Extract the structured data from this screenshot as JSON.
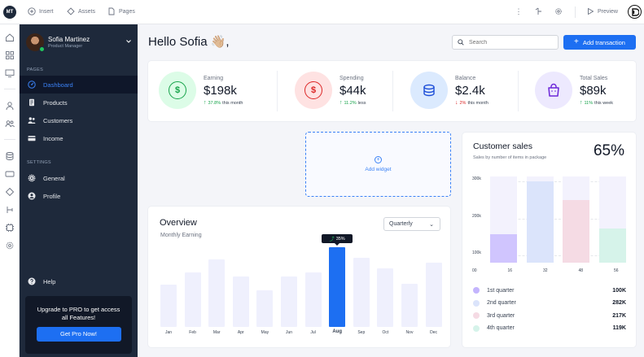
{
  "topbar": {
    "workspace_initials": "MT",
    "insert_label": "Insert",
    "assets_label": "Assets",
    "pages_label": "Pages",
    "preview_label": "Preview"
  },
  "profile": {
    "name": "Sofia Martinez",
    "role": "Product Manager"
  },
  "sidebar": {
    "pages_section": "PAGES",
    "items": [
      {
        "label": "Dashboard",
        "icon": "dashboard-icon",
        "active": true
      },
      {
        "label": "Products",
        "icon": "document-icon"
      },
      {
        "label": "Customers",
        "icon": "users-icon"
      },
      {
        "label": "Income",
        "icon": "card-icon"
      }
    ],
    "settings_section": "SETTINGS",
    "settings_items": [
      {
        "label": "General",
        "icon": "gear-icon"
      },
      {
        "label": "Profile",
        "icon": "user-circle-icon"
      }
    ],
    "help_label": "Help",
    "upgrade_text": "Upgrade to  PRO to get access all Features!",
    "upgrade_button": "Get Pro Now!"
  },
  "header": {
    "greeting": "Hello Sofia 👋🏼,",
    "search_placeholder": "Search",
    "add_button": "Add transaction"
  },
  "stats": [
    {
      "label": "Earning",
      "value": "$198k",
      "trend_pct": "37.8%",
      "trend_text": "this month",
      "direction": "up",
      "color": "#16a34a",
      "bg": "#dcfce7"
    },
    {
      "label": "Spending",
      "value": "$44k",
      "trend_pct": "11.2%",
      "trend_text": "less",
      "direction": "up",
      "color": "#dc2626",
      "bg": "#fee2e2"
    },
    {
      "label": "Balance",
      "value": "$2.4k",
      "trend_pct": "2%",
      "trend_text": "this month",
      "direction": "down",
      "color": "#1d6ff2",
      "bg": "#dbeafe"
    },
    {
      "label": "Total Sales",
      "value": "$89k",
      "trend_pct": "11%",
      "trend_text": "this week",
      "direction": "up",
      "color": "#7c3aed",
      "bg": "#ede9fe"
    }
  ],
  "add_widget_label": "Add widget",
  "overview": {
    "title": "Overview",
    "subtitle": "Monthly Earning",
    "period": "Quarterly",
    "tooltip": "35%",
    "chart_data": {
      "type": "bar",
      "categories": [
        "Jan",
        "Feb",
        "Mar",
        "Apr",
        "May",
        "Jun",
        "Jul",
        "Aug",
        "Sep",
        "Oct",
        "Nov",
        "Dec"
      ],
      "values": [
        52,
        67,
        83,
        62,
        45,
        62,
        67,
        98,
        85,
        72,
        53,
        79
      ],
      "highlight": "Aug",
      "ylim": [
        0,
        100
      ]
    }
  },
  "customer_sales": {
    "title": "Customer sales",
    "subtitle": "Sales by number of items in package",
    "percent": "65%",
    "chart_data": {
      "type": "bar",
      "y_ticks": [
        "300k",
        "200k",
        "100k"
      ],
      "x_ticks": [
        "00",
        "16",
        "32",
        "48",
        "56"
      ],
      "ylim": [
        0,
        300
      ],
      "series": [
        {
          "name": "1st quarter",
          "value": 100,
          "label": "100K",
          "color": "#c4b5fd"
        },
        {
          "name": "2nd quarter",
          "value": 282,
          "label": "282K",
          "color": "#dbe4fb"
        },
        {
          "name": "3rd quarter",
          "value": 217,
          "label": "217K",
          "color": "#f5dbe4"
        },
        {
          "name": "4th quarter",
          "value": 119,
          "label": "119K",
          "color": "#d6f3ea"
        }
      ]
    }
  }
}
